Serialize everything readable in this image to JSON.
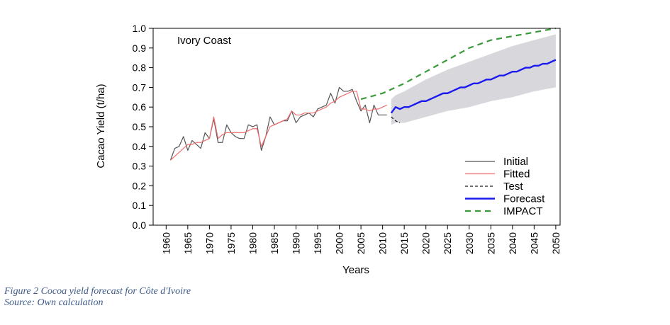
{
  "caption": {
    "line1": "Figure 2 Cocoa yield forecast for Côte d'Ivoire",
    "line2": "Source: Own calculation"
  },
  "chart_data": {
    "type": "line",
    "title": "",
    "panel_label": "Ivory Coast",
    "xlabel": "Years",
    "ylabel": "Cacao Yield (t/ha)",
    "xlim": [
      1957,
      2051
    ],
    "ylim": [
      0.0,
      1.0
    ],
    "x_ticks": [
      1960,
      1965,
      1970,
      1975,
      1980,
      1985,
      1990,
      1995,
      2000,
      2005,
      2010,
      2015,
      2020,
      2025,
      2030,
      2035,
      2040,
      2045,
      2050
    ],
    "y_ticks": [
      0.0,
      0.1,
      0.2,
      0.3,
      0.4,
      0.5,
      0.6,
      0.7,
      0.8,
      0.9,
      1.0
    ],
    "y_tick_labels": [
      "0.0",
      "0.1",
      "0.2",
      "0.3",
      "0.4",
      "0.5",
      "0.6",
      "0.7",
      "0.8",
      "0.9",
      "1.0"
    ],
    "legend_position": "bottom-right",
    "series": [
      {
        "name": "Initial",
        "color": "#555555",
        "style": "solid",
        "x": [
          1961,
          1962,
          1963,
          1964,
          1965,
          1966,
          1967,
          1968,
          1969,
          1970,
          1971,
          1972,
          1973,
          1974,
          1975,
          1976,
          1977,
          1978,
          1979,
          1980,
          1981,
          1982,
          1983,
          1984,
          1985,
          1986,
          1987,
          1988,
          1989,
          1990,
          1991,
          1992,
          1993,
          1994,
          1995,
          1996,
          1997,
          1998,
          1999,
          2000,
          2001,
          2002,
          2003,
          2004,
          2005,
          2006,
          2007,
          2008,
          2009,
          2010,
          2011
        ],
        "y": [
          0.33,
          0.39,
          0.4,
          0.45,
          0.38,
          0.43,
          0.41,
          0.39,
          0.47,
          0.44,
          0.54,
          0.42,
          0.42,
          0.51,
          0.47,
          0.45,
          0.44,
          0.44,
          0.51,
          0.5,
          0.51,
          0.38,
          0.45,
          0.55,
          0.51,
          0.52,
          0.53,
          0.53,
          0.58,
          0.52,
          0.55,
          0.56,
          0.57,
          0.55,
          0.59,
          0.6,
          0.61,
          0.67,
          0.62,
          0.7,
          0.68,
          0.68,
          0.69,
          0.63,
          0.58,
          0.61,
          0.52,
          0.61,
          0.56,
          0.56,
          0.56
        ]
      },
      {
        "name": "Fitted",
        "color": "#f26d6d",
        "style": "solid",
        "x": [
          1961,
          1962,
          1963,
          1964,
          1965,
          1966,
          1967,
          1968,
          1969,
          1970,
          1971,
          1972,
          1973,
          1974,
          1975,
          1976,
          1977,
          1978,
          1979,
          1980,
          1981,
          1982,
          1983,
          1984,
          1985,
          1986,
          1987,
          1988,
          1989,
          1990,
          1991,
          1992,
          1993,
          1994,
          1995,
          1996,
          1997,
          1998,
          1999,
          2000,
          2001,
          2002,
          2003,
          2004,
          2005,
          2006,
          2007,
          2008,
          2009,
          2010,
          2011
        ],
        "y": [
          0.33,
          0.35,
          0.37,
          0.39,
          0.41,
          0.41,
          0.42,
          0.42,
          0.43,
          0.44,
          0.55,
          0.44,
          0.46,
          0.47,
          0.47,
          0.47,
          0.47,
          0.47,
          0.48,
          0.49,
          0.49,
          0.4,
          0.45,
          0.5,
          0.51,
          0.52,
          0.53,
          0.54,
          0.58,
          0.56,
          0.56,
          0.57,
          0.57,
          0.57,
          0.58,
          0.59,
          0.6,
          0.62,
          0.63,
          0.65,
          0.66,
          0.67,
          0.68,
          0.68,
          0.59,
          0.59,
          0.58,
          0.59,
          0.59,
          0.6,
          0.61
        ]
      },
      {
        "name": "Test",
        "color": "#222222",
        "style": "dashed",
        "x": [
          2012,
          2013,
          2014
        ],
        "y": [
          0.55,
          0.53,
          0.52
        ]
      },
      {
        "name": "Forecast",
        "color": "#1a1aee",
        "style": "solid",
        "x": [
          2012,
          2013,
          2014,
          2015,
          2016,
          2017,
          2018,
          2019,
          2020,
          2021,
          2022,
          2023,
          2024,
          2025,
          2026,
          2027,
          2028,
          2029,
          2030,
          2031,
          2032,
          2033,
          2034,
          2035,
          2036,
          2037,
          2038,
          2039,
          2040,
          2041,
          2042,
          2043,
          2044,
          2045,
          2046,
          2047,
          2048,
          2049,
          2050
        ],
        "y": [
          0.57,
          0.6,
          0.59,
          0.6,
          0.6,
          0.61,
          0.62,
          0.63,
          0.63,
          0.64,
          0.65,
          0.66,
          0.67,
          0.67,
          0.68,
          0.69,
          0.7,
          0.7,
          0.71,
          0.72,
          0.72,
          0.73,
          0.74,
          0.74,
          0.75,
          0.76,
          0.76,
          0.77,
          0.78,
          0.78,
          0.79,
          0.8,
          0.8,
          0.81,
          0.81,
          0.82,
          0.82,
          0.83,
          0.84
        ]
      },
      {
        "name": "IMPACT",
        "color": "#3a9a3a",
        "style": "dashed",
        "x": [
          2005,
          2010,
          2015,
          2020,
          2025,
          2030,
          2035,
          2040,
          2045,
          2050
        ],
        "y": [
          0.64,
          0.67,
          0.72,
          0.78,
          0.84,
          0.9,
          0.94,
          0.96,
          0.98,
          1.0
        ]
      }
    ],
    "band": {
      "color": "#d8d8dc",
      "x": [
        2012,
        2013,
        2015,
        2020,
        2025,
        2030,
        2035,
        2040,
        2045,
        2050
      ],
      "lower": [
        0.51,
        0.52,
        0.52,
        0.55,
        0.58,
        0.6,
        0.63,
        0.65,
        0.68,
        0.7
      ],
      "upper": [
        0.64,
        0.66,
        0.68,
        0.74,
        0.79,
        0.83,
        0.87,
        0.91,
        0.94,
        0.97
      ]
    }
  }
}
